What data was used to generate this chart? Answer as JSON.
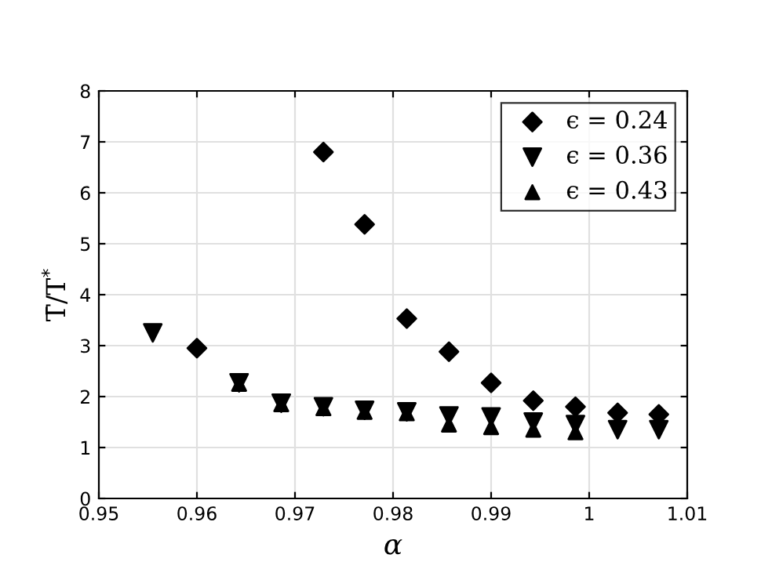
{
  "chart_data": {
    "type": "scatter",
    "xlabel": "α",
    "ylabel": "T̄/T$^{*}$",
    "xlim": [
      0.95,
      1.01
    ],
    "xticks": [
      0.95,
      0.96,
      0.97,
      0.98,
      0.99,
      1,
      1.01
    ],
    "ylim": [
      0,
      8
    ],
    "yticks": [
      0,
      1,
      2,
      3,
      4,
      5,
      6,
      7,
      8
    ],
    "grid": true,
    "legend": "top right",
    "series": [
      {
        "name": "ϵ = 0.24",
        "color": "#000000",
        "marker": "diamond",
        "x": [
          0.96,
          0.9729,
          0.9771,
          0.9814,
          0.9857,
          0.99,
          0.9943,
          0.9986,
          1.0029,
          1.0071
        ],
        "values": [
          2.95,
          6.8,
          5.38,
          3.53,
          2.88,
          2.27,
          1.92,
          1.8,
          1.68,
          1.65
        ]
      },
      {
        "name": "ϵ = 0.36",
        "color": "#000000",
        "marker": "triangle_down",
        "x": [
          0.9555,
          0.9643,
          0.9686,
          0.9729,
          0.9771,
          0.9814,
          0.9857,
          0.99,
          0.9943,
          0.9986,
          1.0029,
          1.0071
        ],
        "values": [
          3.25,
          2.27,
          1.87,
          1.8,
          1.73,
          1.7,
          1.62,
          1.6,
          1.5,
          1.45,
          1.35,
          1.35
        ]
      },
      {
        "name": "ϵ = 0.43",
        "color": "#000000",
        "marker": "triangle",
        "x": [
          0.9643,
          0.9686,
          0.9729,
          0.9771,
          0.9814,
          0.9857,
          0.99,
          0.9943,
          0.9986
        ],
        "values": [
          2.25,
          1.85,
          1.77,
          1.7,
          1.67,
          1.45,
          1.4,
          1.35,
          1.3
        ]
      }
    ]
  }
}
